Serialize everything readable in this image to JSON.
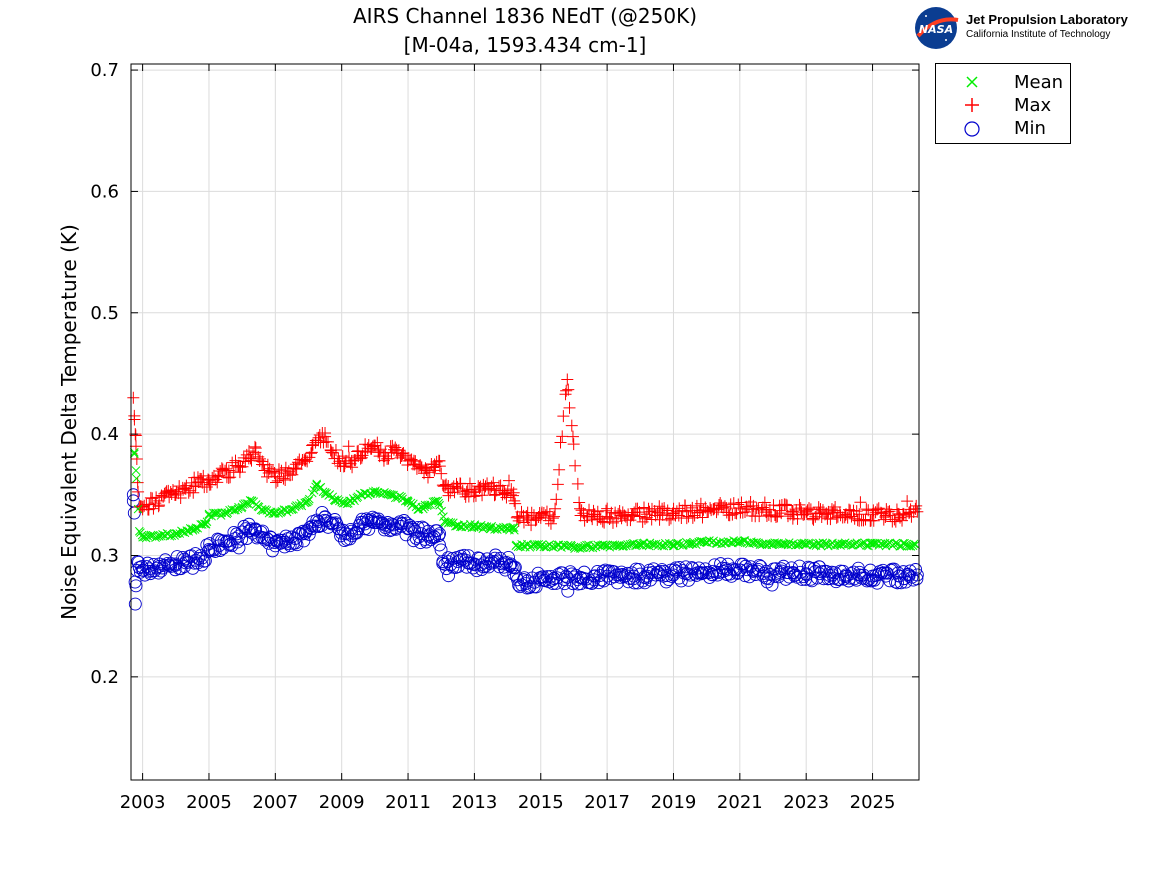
{
  "header": {
    "title_line1": "AIRS Channel 1836 NEdT (@250K)",
    "title_line2": "[M-04a, 1593.434 cm-1]"
  },
  "logo": {
    "badge_text": "NASA",
    "name": "Jet Propulsion Laboratory",
    "subtitle": "California Institute of Technology"
  },
  "legend": {
    "placement": "outside-top-right",
    "items": [
      {
        "label": "Mean",
        "marker": "x",
        "color": "#00ee00"
      },
      {
        "label": "Max",
        "marker": "+",
        "color": "#ff0000"
      },
      {
        "label": "Min",
        "marker": "o",
        "color": "#0000cc"
      }
    ]
  },
  "chart_data": {
    "type": "scatter",
    "title": "AIRS Channel 1836 NEdT (@250K) [M-04a, 1593.434 cm-1]",
    "xlabel": "",
    "ylabel": "Noise Equivalent Delta Temperature (K)",
    "xlim": [
      2002.65,
      2026.4
    ],
    "ylim": [
      0.115,
      0.705
    ],
    "xticks": [
      "2003",
      "2005",
      "2007",
      "2009",
      "2011",
      "2013",
      "2015",
      "2017",
      "2019",
      "2021",
      "2023",
      "2025"
    ],
    "yticks": [
      "0.2",
      "0.3",
      "0.4",
      "0.5",
      "0.6",
      "0.7"
    ],
    "grid": true,
    "series": [
      {
        "name": "Mean",
        "marker": "x",
        "color": "#00ee00",
        "x": [
          2002.75,
          2002.8,
          2002.9,
          2003.0,
          2003.5,
          2004.0,
          2004.5,
          2004.9,
          2005.0,
          2005.5,
          2006.0,
          2006.3,
          2006.6,
          2007.0,
          2007.5,
          2008.0,
          2008.25,
          2008.5,
          2008.8,
          2009.2,
          2009.6,
          2010.0,
          2010.5,
          2011.0,
          2011.3,
          2011.5,
          2011.9,
          2012.1,
          2012.5,
          2013.0,
          2013.5,
          2014.0,
          2014.2,
          2014.25,
          2014.5,
          2015.0,
          2016.0,
          2017.0,
          2018.0,
          2019.0,
          2019.5,
          2020.0,
          2021.0,
          2022.0,
          2023.0,
          2024.0,
          2025.0,
          2026.0,
          2026.3
        ],
        "y": [
          0.385,
          0.37,
          0.32,
          0.315,
          0.316,
          0.318,
          0.322,
          0.326,
          0.333,
          0.335,
          0.34,
          0.345,
          0.338,
          0.335,
          0.338,
          0.345,
          0.358,
          0.352,
          0.346,
          0.343,
          0.35,
          0.352,
          0.35,
          0.345,
          0.338,
          0.34,
          0.345,
          0.328,
          0.325,
          0.324,
          0.323,
          0.322,
          0.323,
          0.308,
          0.308,
          0.308,
          0.307,
          0.308,
          0.309,
          0.309,
          0.31,
          0.311,
          0.311,
          0.31,
          0.309,
          0.309,
          0.309,
          0.309,
          0.309
        ]
      },
      {
        "name": "Max",
        "marker": "+",
        "color": "#ff0000",
        "x": [
          2002.72,
          2002.75,
          2002.78,
          2002.8,
          2002.85,
          2002.9,
          2003.0,
          2003.2,
          2003.5,
          2003.8,
          2004.0,
          2004.3,
          2004.6,
          2004.8,
          2005.0,
          2005.3,
          2005.6,
          2005.9,
          2006.2,
          2006.4,
          2006.6,
          2006.8,
          2007.0,
          2007.3,
          2007.6,
          2007.9,
          2008.1,
          2008.3,
          2008.5,
          2008.7,
          2008.9,
          2009.1,
          2009.3,
          2009.5,
          2009.7,
          2009.9,
          2010.1,
          2010.3,
          2010.5,
          2010.8,
          2011.0,
          2011.2,
          2011.4,
          2011.6,
          2011.8,
          2011.95,
          2012.05,
          2012.2,
          2012.5,
          2012.8,
          2013.0,
          2013.3,
          2013.6,
          2013.9,
          2014.1,
          2014.2,
          2014.3,
          2014.6,
          2015.0,
          2015.4,
          2015.8,
          2016.2,
          2016.6,
          2017.0,
          2017.4,
          2017.8,
          2018.2,
          2018.6,
          2019.0,
          2019.4,
          2019.8,
          2020.2,
          2020.6,
          2021.0,
          2021.4,
          2021.8,
          2022.2,
          2022.6,
          2023.0,
          2023.4,
          2023.8,
          2024.2,
          2024.6,
          2025.0,
          2025.4,
          2025.8,
          2026.1,
          2026.35
        ],
        "y": [
          0.43,
          0.415,
          0.4,
          0.39,
          0.36,
          0.34,
          0.338,
          0.342,
          0.345,
          0.348,
          0.35,
          0.355,
          0.358,
          0.36,
          0.362,
          0.366,
          0.37,
          0.374,
          0.38,
          0.385,
          0.375,
          0.368,
          0.365,
          0.368,
          0.372,
          0.378,
          0.385,
          0.395,
          0.398,
          0.385,
          0.38,
          0.376,
          0.378,
          0.382,
          0.386,
          0.388,
          0.385,
          0.382,
          0.385,
          0.382,
          0.378,
          0.375,
          0.372,
          0.37,
          0.375,
          0.378,
          0.358,
          0.355,
          0.355,
          0.354,
          0.352,
          0.354,
          0.355,
          0.352,
          0.35,
          0.345,
          0.332,
          0.331,
          0.331,
          0.332,
          0.445,
          0.333,
          0.334,
          0.332,
          0.333,
          0.333,
          0.334,
          0.335,
          0.335,
          0.336,
          0.337,
          0.338,
          0.339,
          0.339,
          0.338,
          0.338,
          0.337,
          0.336,
          0.336,
          0.335,
          0.335,
          0.334,
          0.334,
          0.334,
          0.333,
          0.334,
          0.335,
          0.336
        ]
      },
      {
        "name": "Min",
        "marker": "o",
        "color": "#0000cc",
        "x": [
          2002.72,
          2002.75,
          2002.78,
          2002.8,
          2002.85,
          2002.9,
          2003.0,
          2003.2,
          2003.5,
          2003.8,
          2004.0,
          2004.3,
          2004.6,
          2004.8,
          2005.0,
          2005.3,
          2005.6,
          2005.9,
          2006.2,
          2006.4,
          2006.6,
          2006.8,
          2007.0,
          2007.3,
          2007.6,
          2007.9,
          2008.1,
          2008.3,
          2008.5,
          2008.7,
          2008.9,
          2009.1,
          2009.3,
          2009.5,
          2009.7,
          2009.9,
          2010.1,
          2010.3,
          2010.5,
          2010.8,
          2011.0,
          2011.2,
          2011.4,
          2011.6,
          2011.8,
          2011.95,
          2012.05,
          2012.2,
          2012.5,
          2012.8,
          2013.0,
          2013.3,
          2013.6,
          2013.9,
          2014.1,
          2014.2,
          2014.3,
          2014.6,
          2015.0,
          2015.4,
          2015.8,
          2016.2,
          2016.6,
          2017.0,
          2017.4,
          2017.8,
          2018.2,
          2018.6,
          2019.0,
          2019.4,
          2019.8,
          2020.2,
          2020.6,
          2021.0,
          2021.4,
          2021.8,
          2022.2,
          2022.6,
          2023.0,
          2023.4,
          2023.8,
          2024.2,
          2024.6,
          2025.0,
          2025.4,
          2025.8,
          2026.1,
          2026.35
        ],
        "y": [
          0.345,
          0.335,
          0.26,
          0.275,
          0.295,
          0.29,
          0.288,
          0.289,
          0.291,
          0.292,
          0.293,
          0.294,
          0.296,
          0.298,
          0.305,
          0.308,
          0.312,
          0.316,
          0.32,
          0.322,
          0.315,
          0.31,
          0.308,
          0.311,
          0.314,
          0.318,
          0.322,
          0.328,
          0.332,
          0.326,
          0.322,
          0.318,
          0.32,
          0.322,
          0.326,
          0.328,
          0.327,
          0.325,
          0.326,
          0.324,
          0.322,
          0.32,
          0.318,
          0.316,
          0.315,
          0.318,
          0.295,
          0.295,
          0.295,
          0.294,
          0.293,
          0.294,
          0.295,
          0.294,
          0.293,
          0.29,
          0.28,
          0.279,
          0.28,
          0.281,
          0.282,
          0.282,
          0.283,
          0.283,
          0.282,
          0.283,
          0.283,
          0.284,
          0.284,
          0.285,
          0.286,
          0.287,
          0.288,
          0.288,
          0.287,
          0.287,
          0.286,
          0.286,
          0.285,
          0.285,
          0.284,
          0.284,
          0.284,
          0.283,
          0.283,
          0.283,
          0.283,
          0.284
        ]
      }
    ]
  }
}
